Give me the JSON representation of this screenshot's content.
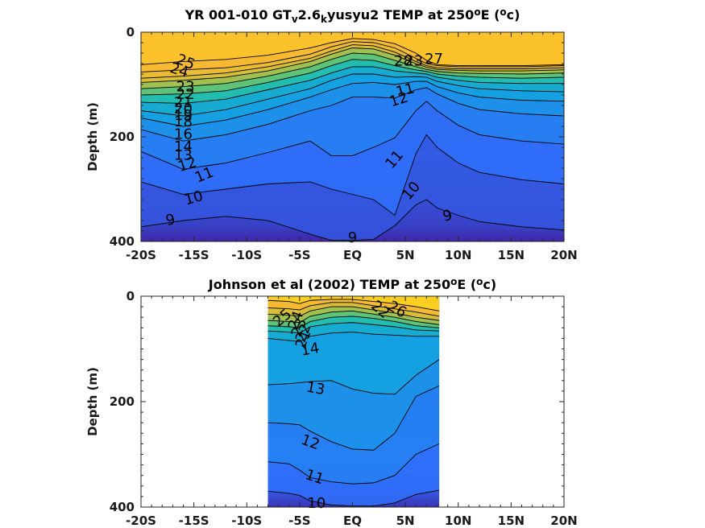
{
  "chart_data": [
    {
      "type": "contour",
      "title_parts": [
        "YR 001-010 GT",
        "v",
        "2.6",
        "k",
        "yusyu2 TEMP at 250",
        "o",
        "E (",
        "o",
        "c)"
      ],
      "xlabel": "",
      "ylabel": "Depth (m)",
      "xlim": [
        -20,
        20
      ],
      "ylim": [
        400,
        0
      ],
      "xticks": [
        -20,
        -15,
        -10,
        -5,
        0,
        5,
        10,
        15,
        20
      ],
      "xtick_labels": [
        "-20S",
        "-15S",
        "-10S",
        "-5S",
        "EQ",
        "5N",
        "10N",
        "15N",
        "20N"
      ],
      "yticks": [
        0,
        200,
        400
      ],
      "ytick_labels": [
        "0",
        "200",
        "400"
      ],
      "colormap": [
        "#3e26a8",
        "#2f6ffa",
        "#14a1e2",
        "#1bbfb3",
        "#7ac55f",
        "#d9bd36",
        "#fdb932",
        "#f9e017"
      ],
      "vmin": 8,
      "vmax": 28,
      "data_extent_x": [
        -20,
        20
      ],
      "x": [
        -20,
        -16,
        -12,
        -8,
        -4,
        -2,
        0,
        2,
        4,
        6,
        7,
        8,
        10,
        12,
        16,
        20
      ],
      "contours": [
        {
          "level": 25,
          "depths": [
            62,
            56,
            52,
            44,
            30,
            20,
            12,
            14,
            22,
            40,
            54,
            62,
            64,
            64,
            64,
            62
          ]
        },
        {
          "level": 24,
          "depths": [
            76,
            72,
            68,
            58,
            42,
            28,
            18,
            20,
            30,
            50,
            60,
            64,
            66,
            66,
            66,
            64
          ]
        },
        {
          "level": 23,
          "depths": [
            88,
            84,
            78,
            66,
            50,
            36,
            24,
            26,
            38,
            56,
            64,
            68,
            70,
            70,
            70,
            68
          ]
        },
        {
          "level": 22,
          "depths": [
            96,
            92,
            86,
            74,
            56,
            42,
            30,
            32,
            44,
            60,
            67,
            71,
            73,
            74,
            74,
            72
          ]
        },
        {
          "level": 20,
          "depths": [
            108,
            104,
            98,
            84,
            66,
            52,
            40,
            42,
            54,
            66,
            71,
            75,
            78,
            79,
            80,
            78
          ]
        },
        {
          "level": 18,
          "depths": [
            120,
            118,
            112,
            96,
            78,
            64,
            52,
            54,
            64,
            72,
            75,
            80,
            84,
            86,
            88,
            86
          ]
        },
        {
          "level": 16,
          "depths": [
            134,
            136,
            128,
            110,
            92,
            78,
            66,
            66,
            74,
            78,
            80,
            86,
            92,
            96,
            98,
            98
          ]
        },
        {
          "level": 14,
          "depths": [
            150,
            160,
            148,
            128,
            108,
            92,
            80,
            80,
            86,
            85,
            86,
            94,
            102,
            108,
            112,
            114
          ]
        },
        {
          "level": 13,
          "depths": [
            164,
            180,
            168,
            148,
            124,
            110,
            98,
            96,
            100,
            94,
            94,
            104,
            116,
            124,
            130,
            132
          ]
        },
        {
          "level": 12,
          "depths": [
            186,
            208,
            196,
            176,
            150,
            140,
            124,
            124,
            126,
            110,
            106,
            118,
            136,
            148,
            156,
            160
          ]
        },
        {
          "level": 11,
          "depths": [
            228,
            262,
            250,
            230,
            208,
            236,
            236,
            220,
            202,
            150,
            132,
            150,
            178,
            196,
            208,
            214
          ]
        },
        {
          "level": 10,
          "depths": [
            286,
            310,
            300,
            290,
            286,
            300,
            310,
            320,
            350,
            232,
            196,
            220,
            250,
            268,
            282,
            290
          ]
        },
        {
          "level": 9,
          "depths": [
            372,
            360,
            352,
            360,
            386,
            398,
            398,
            396,
            370,
            330,
            320,
            336,
            350,
            362,
            372,
            378
          ]
        }
      ],
      "contour_labels": [
        {
          "text": "25",
          "x": -15.8,
          "y": 58,
          "rot": 22
        },
        {
          "text": "24",
          "x": -16.4,
          "y": 74,
          "rot": 18
        },
        {
          "text": "23",
          "x": -15.8,
          "y": 105,
          "rot": 0
        },
        {
          "text": "22",
          "x": -15.8,
          "y": 120,
          "rot": 0
        },
        {
          "text": "21",
          "x": -16.0,
          "y": 135,
          "rot": 0
        },
        {
          "text": "20",
          "x": -16.0,
          "y": 148,
          "rot": 0
        },
        {
          "text": "19",
          "x": -16.0,
          "y": 160,
          "rot": 0
        },
        {
          "text": "18",
          "x": -16.0,
          "y": 172,
          "rot": 0
        },
        {
          "text": "16",
          "x": -16.0,
          "y": 196,
          "rot": 0
        },
        {
          "text": "14",
          "x": -16.0,
          "y": 220,
          "rot": 0
        },
        {
          "text": "13",
          "x": -16.0,
          "y": 236,
          "rot": 0
        },
        {
          "text": "12",
          "x": -15.6,
          "y": 254,
          "rot": -18
        },
        {
          "text": "11",
          "x": -14.0,
          "y": 274,
          "rot": -22
        },
        {
          "text": "10",
          "x": -15.0,
          "y": 318,
          "rot": -16
        },
        {
          "text": "9",
          "x": -17.2,
          "y": 360,
          "rot": -12
        },
        {
          "text": "28",
          "x": 4.8,
          "y": 56,
          "rot": 0
        },
        {
          "text": "23",
          "x": 5.8,
          "y": 56,
          "rot": 0
        },
        {
          "text": "27",
          "x": 7.7,
          "y": 52,
          "rot": 0
        },
        {
          "text": "11",
          "x": 5.0,
          "y": 112,
          "rot": -15
        },
        {
          "text": "12",
          "x": 4.4,
          "y": 130,
          "rot": -18
        },
        {
          "text": "11",
          "x": 4.0,
          "y": 244,
          "rot": -50
        },
        {
          "text": "10",
          "x": 5.6,
          "y": 304,
          "rot": -50
        },
        {
          "text": "9",
          "x": 9.0,
          "y": 352,
          "rot": -14
        },
        {
          "text": "9",
          "x": 0.0,
          "y": 394,
          "rot": 0
        }
      ]
    },
    {
      "type": "contour",
      "title_parts": [
        "Johnson et al (2002) TEMP at 250",
        "o",
        "E (",
        "o",
        "c)"
      ],
      "xlabel": "",
      "ylabel": "Depth (m)",
      "xlim": [
        -20,
        20
      ],
      "ylim": [
        400,
        0
      ],
      "xticks": [
        -20,
        -15,
        -10,
        -5,
        0,
        5,
        10,
        15,
        20
      ],
      "xtick_labels": [
        "-20S",
        "-15S",
        "-10S",
        "-5S",
        "EQ",
        "5N",
        "10N",
        "15N",
        "20N"
      ],
      "yticks": [
        0,
        200,
        400
      ],
      "ytick_labels": [
        "0",
        "200",
        "400"
      ],
      "colormap": [
        "#3e26a8",
        "#2f6ffa",
        "#14a1e2",
        "#1bbfb3",
        "#7ac55f",
        "#d9bd36",
        "#fdb932",
        "#f9e017"
      ],
      "vmin": 8,
      "vmax": 28,
      "data_extent_x": [
        -8,
        8.2
      ],
      "x": [
        -8,
        -6,
        -5,
        -4,
        -2,
        0,
        2,
        4,
        6,
        8.2
      ],
      "contours": [
        {
          "level": 26,
          "depths": [
            8,
            10,
            14,
            8,
            6,
            6,
            10,
            14,
            20,
            28
          ]
        },
        {
          "level": 24,
          "depths": [
            22,
            24,
            26,
            18,
            12,
            12,
            18,
            24,
            30,
            38
          ]
        },
        {
          "level": 22,
          "depths": [
            34,
            36,
            38,
            28,
            20,
            20,
            26,
            32,
            40,
            46
          ]
        },
        {
          "level": 20,
          "depths": [
            46,
            48,
            50,
            38,
            30,
            28,
            34,
            40,
            48,
            54
          ]
        },
        {
          "level": 18,
          "depths": [
            56,
            58,
            60,
            48,
            40,
            38,
            42,
            48,
            56,
            60
          ]
        },
        {
          "level": 16,
          "depths": [
            66,
            68,
            70,
            58,
            52,
            50,
            54,
            58,
            64,
            66
          ]
        },
        {
          "level": 14,
          "depths": [
            80,
            84,
            86,
            76,
            70,
            68,
            72,
            74,
            76,
            76
          ]
        },
        {
          "level": 13,
          "depths": [
            168,
            166,
            164,
            162,
            160,
            176,
            184,
            186,
            150,
            120
          ]
        },
        {
          "level": 12,
          "depths": [
            240,
            242,
            244,
            256,
            276,
            290,
            292,
            260,
            190,
            170
          ]
        },
        {
          "level": 11,
          "depths": [
            314,
            318,
            330,
            344,
            352,
            356,
            354,
            340,
            300,
            280
          ]
        },
        {
          "level": 10,
          "depths": [
            370,
            374,
            378,
            388,
            396,
            398,
            398,
            392,
            376,
            368
          ]
        }
      ],
      "contour_labels": [
        {
          "text": "25",
          "x": -6.6,
          "y": 42,
          "rot": -40
        },
        {
          "text": "24",
          "x": -5.3,
          "y": 46,
          "rot": -70
        },
        {
          "text": "23",
          "x": -5.0,
          "y": 60,
          "rot": -70
        },
        {
          "text": "22",
          "x": -4.6,
          "y": 70,
          "rot": -70
        },
        {
          "text": "21",
          "x": -4.6,
          "y": 82,
          "rot": -70
        },
        {
          "text": "14",
          "x": -4.0,
          "y": 102,
          "rot": -10
        },
        {
          "text": "22",
          "x": 2.6,
          "y": 26,
          "rot": 40
        },
        {
          "text": "26",
          "x": 4.2,
          "y": 26,
          "rot": 30
        },
        {
          "text": "13",
          "x": -3.5,
          "y": 176,
          "rot": 10
        },
        {
          "text": "12",
          "x": -4.0,
          "y": 278,
          "rot": 20
        },
        {
          "text": "11",
          "x": -3.6,
          "y": 344,
          "rot": 18
        },
        {
          "text": "10",
          "x": -3.4,
          "y": 394,
          "rot": 0
        }
      ]
    }
  ]
}
